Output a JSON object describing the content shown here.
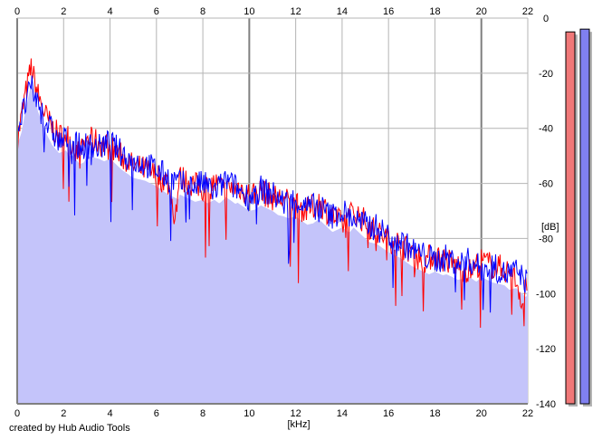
{
  "credit": "created by Hub Audio Tools",
  "chart_data": {
    "type": "area",
    "xlabel": "[kHz]",
    "ylabel": "[dB]",
    "xlim": [
      0,
      22
    ],
    "ylim": [
      -140,
      0
    ],
    "x_ticks": [
      0,
      2,
      4,
      6,
      8,
      10,
      12,
      14,
      16,
      18,
      20,
      22
    ],
    "y_ticks": [
      0,
      -20,
      -40,
      -60,
      -80,
      -100,
      -120,
      -140
    ],
    "y_tick_labels": [
      "0",
      "-20",
      "-40",
      "-60",
      "-80",
      "-100",
      "-120",
      "-140"
    ],
    "grid": true,
    "colors": {
      "fill": "#c4c4fa",
      "left_channel": "#ff0000",
      "right_channel": "#0000ff",
      "grid": "#b4b4b4",
      "major_grid": "#808080",
      "meter_left": "#f07878",
      "meter_right": "#8080f0"
    },
    "series": [
      {
        "color": "#ff0000",
        "x": [
          0.0,
          0.3,
          0.6,
          0.9,
          1.2,
          1.5,
          1.8,
          2.1,
          2.4,
          2.7,
          3.0,
          3.5,
          4.0,
          4.5,
          5.0,
          5.5,
          6.0,
          6.5,
          6.8,
          7.0,
          7.5,
          8.0,
          8.5,
          9.0,
          9.5,
          10.0,
          10.5,
          11.0,
          11.5,
          12.0,
          12.5,
          13.0,
          13.5,
          14.0,
          14.5,
          15.0,
          15.5,
          16.0,
          16.5,
          17.0,
          17.5,
          18.0,
          18.5,
          19.0,
          19.5,
          20.0,
          20.5,
          21.0,
          21.5,
          21.8,
          22.0
        ],
        "values": [
          -45,
          -30,
          -18,
          -28,
          -35,
          -40,
          -43,
          -42,
          -46,
          -50,
          -44,
          -45,
          -47,
          -50,
          -54,
          -55,
          -57,
          -60,
          -72,
          -58,
          -60,
          -62,
          -60,
          -63,
          -61,
          -64,
          -63,
          -65,
          -66,
          -68,
          -70,
          -67,
          -71,
          -75,
          -70,
          -74,
          -78,
          -80,
          -82,
          -85,
          -88,
          -86,
          -88,
          -90,
          -92,
          -88,
          -90,
          -91,
          -95,
          -104,
          -92
        ]
      },
      {
        "color": "#0000ff",
        "x": [
          0.0,
          0.3,
          0.6,
          0.9,
          1.2,
          1.5,
          1.8,
          2.1,
          2.4,
          2.7,
          3.0,
          3.5,
          4.0,
          4.5,
          5.0,
          5.5,
          6.0,
          6.5,
          7.0,
          7.5,
          8.0,
          8.5,
          9.0,
          9.5,
          10.0,
          10.5,
          11.0,
          11.5,
          12.0,
          12.5,
          13.0,
          13.5,
          14.0,
          14.5,
          15.0,
          15.5,
          16.0,
          16.5,
          17.0,
          17.5,
          18.0,
          18.5,
          19.0,
          19.5,
          20.0,
          20.5,
          21.0,
          21.5,
          22.0
        ],
        "values": [
          -40,
          -33,
          -25,
          -31,
          -37,
          -41,
          -45,
          -44,
          -44,
          -47,
          -46,
          -47,
          -45,
          -49,
          -52,
          -53,
          -55,
          -58,
          -60,
          -61,
          -60,
          -63,
          -59,
          -62,
          -65,
          -62,
          -64,
          -67,
          -66,
          -69,
          -68,
          -72,
          -70,
          -73,
          -75,
          -76,
          -79,
          -81,
          -84,
          -86,
          -88,
          -87,
          -89,
          -88,
          -91,
          -90,
          -93,
          -92,
          -96
        ]
      }
    ],
    "meters": [
      {
        "color": "#f07878",
        "value": -5
      },
      {
        "color": "#8080f0",
        "value": -4
      }
    ]
  }
}
